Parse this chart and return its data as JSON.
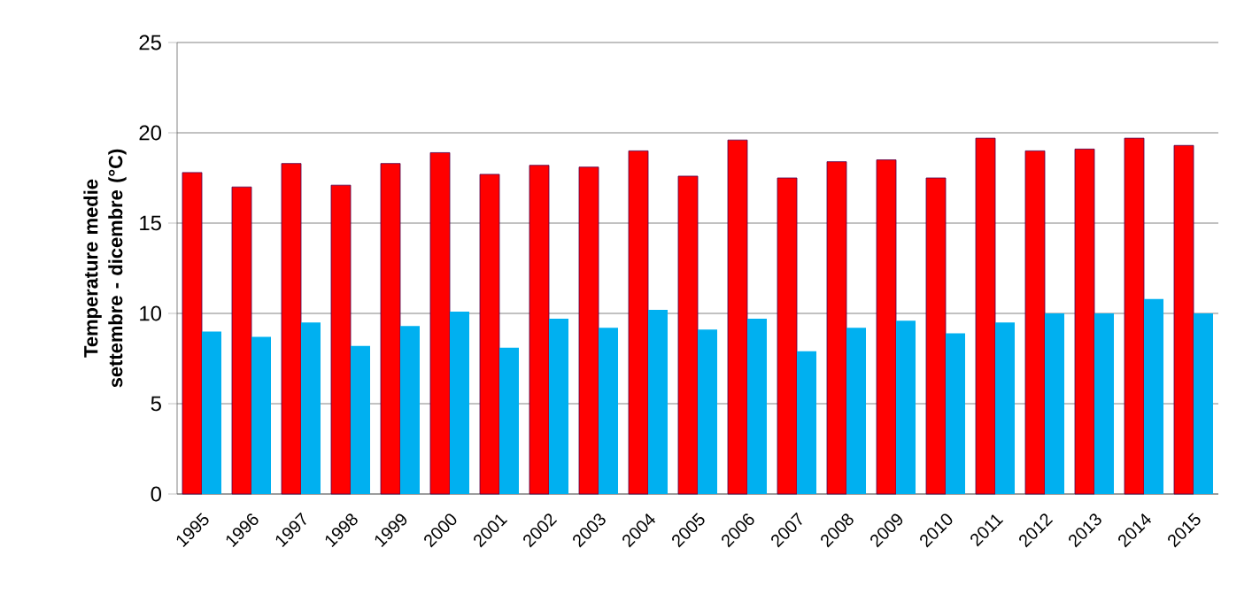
{
  "chart_data": {
    "type": "bar",
    "ylabel": "Temperature medie settembre - dicembre (°C)",
    "categories": [
      "1995",
      "1996",
      "1997",
      "1998",
      "1999",
      "2000",
      "2001",
      "2002",
      "2003",
      "2004",
      "2005",
      "2006",
      "2007",
      "2008",
      "2009",
      "2010",
      "2011",
      "2012",
      "2013",
      "2014",
      "2015"
    ],
    "series": [
      {
        "color": "#ff0000",
        "values": [
          17.8,
          17.0,
          18.3,
          17.1,
          18.3,
          18.9,
          17.7,
          18.2,
          18.1,
          19.0,
          17.6,
          19.6,
          17.5,
          18.4,
          18.5,
          17.5,
          19.7,
          19.0,
          19.1,
          19.7,
          19.3
        ]
      },
      {
        "color": "#00b0f0",
        "values": [
          9.0,
          8.7,
          9.5,
          8.2,
          9.3,
          10.1,
          8.1,
          9.7,
          9.2,
          10.2,
          9.1,
          9.7,
          7.9,
          9.2,
          9.6,
          8.9,
          9.5,
          10.0,
          10.0,
          10.8,
          10.0
        ]
      }
    ],
    "ylim": [
      0,
      25
    ],
    "yticks": [
      0,
      5,
      10,
      15,
      20,
      25
    ],
    "grid": "y"
  }
}
